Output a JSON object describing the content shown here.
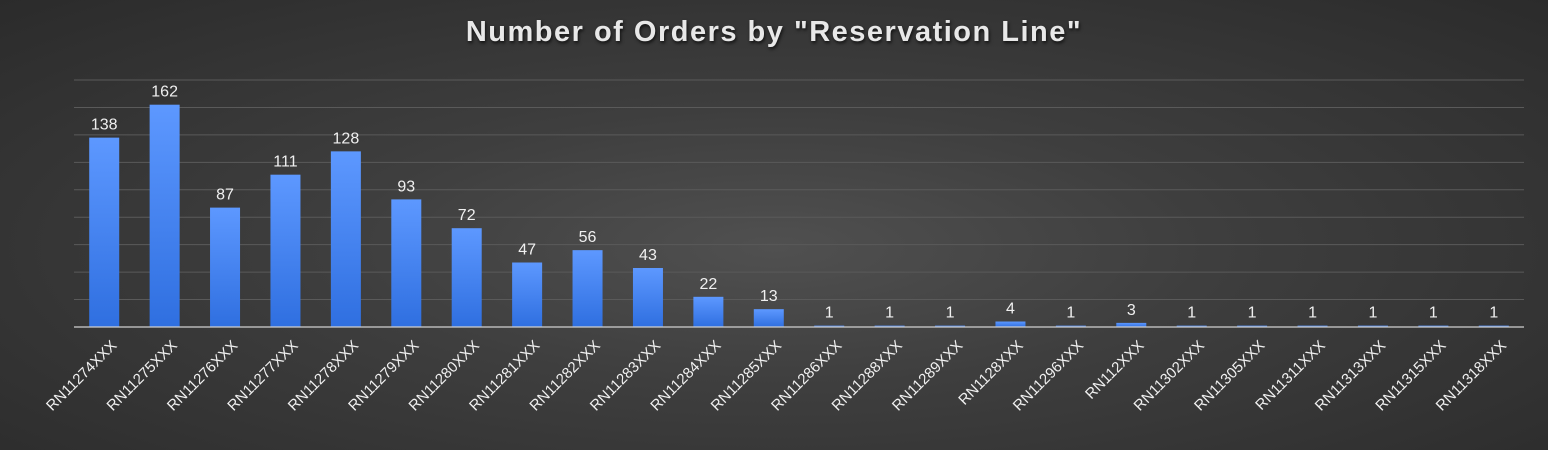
{
  "chart_data": {
    "type": "bar",
    "title": "Number of Orders by \"Reservation Line\"",
    "xlabel": "",
    "ylabel": "",
    "categories": [
      "RN11274XXX",
      "RN11275XXX",
      "RN11276XXX",
      "RN11277XXX",
      "RN11278XXX",
      "RN11279XXX",
      "RN11280XXX",
      "RN11281XXX",
      "RN11282XXX",
      "RN11283XXX",
      "RN11284XXX",
      "RN11285XXX",
      "RN11286XXX",
      "RN11288XXX",
      "RN11289XXX",
      "RN1128XXX",
      "RN11296XXX",
      "RN112XXX",
      "RN11302XXX",
      "RN11305XXX",
      "RN11311XXX",
      "RN11313XXX",
      "RN11315XXX",
      "RN11318XXX"
    ],
    "values": [
      138,
      162,
      87,
      111,
      128,
      93,
      72,
      47,
      56,
      43,
      22,
      13,
      1,
      1,
      1,
      4,
      1,
      3,
      1,
      1,
      1,
      1,
      1,
      1
    ],
    "ylim": [
      0,
      180
    ],
    "ytick_step": 20,
    "grid": true,
    "data_labels": true,
    "colors": {
      "bar_top": "#5d98ff",
      "bar_bottom": "#2f6fe0",
      "grid": "#5a5a5a",
      "text": "#f0f0f0"
    }
  }
}
